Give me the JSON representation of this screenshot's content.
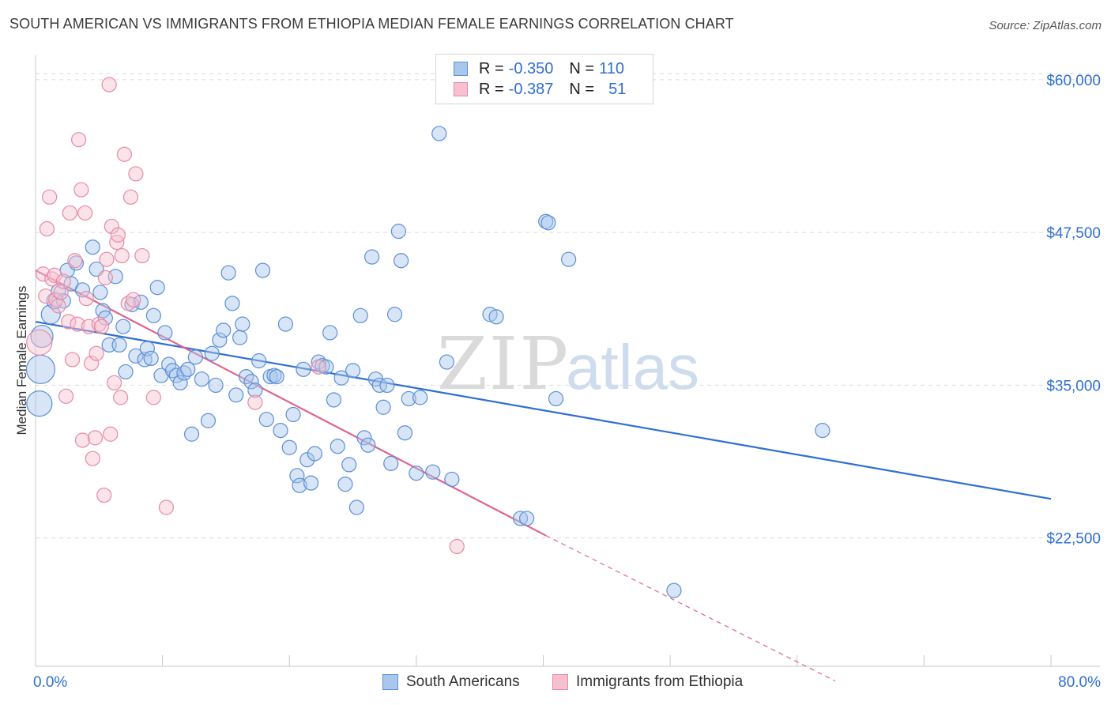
{
  "header": {
    "title": "SOUTH AMERICAN VS IMMIGRANTS FROM ETHIOPIA MEDIAN FEMALE EARNINGS CORRELATION CHART",
    "source": "Source: ZipAtlas.com"
  },
  "watermark": {
    "part1": "ZIP",
    "part2": "atlas"
  },
  "colors": {
    "blue_fill": "#a9c6ec",
    "blue_stroke": "#5b8fd6",
    "blue_line": "#2f6fd0",
    "pink_fill": "#f6c0d1",
    "pink_stroke": "#e68aa7",
    "pink_line": "#e0648f",
    "axis_text": "#2f6fd0",
    "grid": "#dcdcdc"
  },
  "legend": {
    "r_label": "R =",
    "n_label": "N =",
    "rows": [
      {
        "name": "South Americans",
        "r": "-0.350",
        "n": "110",
        "color": "blue"
      },
      {
        "name": "Immigrants from Ethiopia",
        "r": "-0.387",
        "n": "51",
        "color": "pink"
      }
    ]
  },
  "chart_data": {
    "type": "scatter",
    "title": "SOUTH AMERICAN VS IMMIGRANTS FROM ETHIOPIA MEDIAN FEMALE EARNINGS CORRELATION CHART",
    "xlabel": "",
    "ylabel": "Median Female Earnings",
    "xlim": [
      0,
      80
    ],
    "ylim": [
      12000,
      62000
    ],
    "x_tick_labels": [
      "0.0%",
      "80.0%"
    ],
    "y_ticks": [
      22500,
      35000,
      47500,
      60000
    ],
    "y_tick_labels": [
      "$22,500",
      "$35,000",
      "$47,500",
      "$60,000"
    ],
    "grid": true,
    "series": [
      {
        "name": "South Americans",
        "color": "blue",
        "trend": {
          "x0": 0,
          "y0": 40200,
          "x1": 80,
          "y1": 25700,
          "dashed_to": null
        },
        "points": [
          [
            0.3,
            33500,
            16
          ],
          [
            0.4,
            36300,
            18
          ],
          [
            0.5,
            39000,
            14
          ],
          [
            1.2,
            40800,
            12
          ],
          [
            1.5,
            41900,
            10
          ],
          [
            1.8,
            42700,
            9
          ],
          [
            2.2,
            41900,
            9
          ],
          [
            2.5,
            44400,
            9
          ],
          [
            2.8,
            43300,
            9
          ],
          [
            3.2,
            45000,
            9
          ],
          [
            3.7,
            42800,
            9
          ],
          [
            4.5,
            46300,
            9
          ],
          [
            4.8,
            44500,
            9
          ],
          [
            5.1,
            42600,
            9
          ],
          [
            5.3,
            41100,
            9
          ],
          [
            5.5,
            40500,
            9
          ],
          [
            5.8,
            38300,
            9
          ],
          [
            6.3,
            43900,
            9
          ],
          [
            6.6,
            38300,
            9
          ],
          [
            6.9,
            39800,
            9
          ],
          [
            7.1,
            36100,
            9
          ],
          [
            7.6,
            41600,
            9
          ],
          [
            7.9,
            37400,
            9
          ],
          [
            8.3,
            41800,
            9
          ],
          [
            8.6,
            37100,
            9
          ],
          [
            8.8,
            38000,
            9
          ],
          [
            9.1,
            37200,
            9
          ],
          [
            9.3,
            40700,
            9
          ],
          [
            9.6,
            43000,
            9
          ],
          [
            9.9,
            35800,
            9
          ],
          [
            10.2,
            39300,
            9
          ],
          [
            10.5,
            36700,
            9
          ],
          [
            10.8,
            36200,
            9
          ],
          [
            11.1,
            35800,
            9
          ],
          [
            11.4,
            35200,
            9
          ],
          [
            11.7,
            36000,
            9
          ],
          [
            12.0,
            36300,
            9
          ],
          [
            12.3,
            31000,
            9
          ],
          [
            12.6,
            37300,
            9
          ],
          [
            13.1,
            35500,
            9
          ],
          [
            13.6,
            32100,
            9
          ],
          [
            13.9,
            37600,
            9
          ],
          [
            14.2,
            35000,
            9
          ],
          [
            14.5,
            38700,
            9
          ],
          [
            14.8,
            39500,
            9
          ],
          [
            15.2,
            44200,
            9
          ],
          [
            15.5,
            41700,
            9
          ],
          [
            15.8,
            34200,
            9
          ],
          [
            16.1,
            38900,
            9
          ],
          [
            16.3,
            40000,
            9
          ],
          [
            16.6,
            35700,
            9
          ],
          [
            17.0,
            35300,
            9
          ],
          [
            17.3,
            34600,
            9
          ],
          [
            17.6,
            37000,
            9
          ],
          [
            17.9,
            44400,
            9
          ],
          [
            18.2,
            32200,
            9
          ],
          [
            18.5,
            35700,
            9
          ],
          [
            18.8,
            35800,
            9
          ],
          [
            19.0,
            35700,
            9
          ],
          [
            19.3,
            31300,
            9
          ],
          [
            19.7,
            40000,
            9
          ],
          [
            20.0,
            29900,
            9
          ],
          [
            20.3,
            32600,
            9
          ],
          [
            20.6,
            27600,
            9
          ],
          [
            20.8,
            26800,
            9
          ],
          [
            21.1,
            36300,
            9
          ],
          [
            21.4,
            28900,
            9
          ],
          [
            21.7,
            27000,
            9
          ],
          [
            22.0,
            29400,
            9
          ],
          [
            22.3,
            36900,
            9
          ],
          [
            22.6,
            36600,
            9
          ],
          [
            22.9,
            36500,
            9
          ],
          [
            23.2,
            39300,
            9
          ],
          [
            23.5,
            33800,
            9
          ],
          [
            23.8,
            30000,
            9
          ],
          [
            24.1,
            35600,
            9
          ],
          [
            24.4,
            26900,
            9
          ],
          [
            24.7,
            28500,
            9
          ],
          [
            25.0,
            36200,
            9
          ],
          [
            25.3,
            25000,
            9
          ],
          [
            25.6,
            40700,
            9
          ],
          [
            25.9,
            30700,
            9
          ],
          [
            26.2,
            30100,
            9
          ],
          [
            26.5,
            45500,
            9
          ],
          [
            26.8,
            35500,
            9
          ],
          [
            27.1,
            35000,
            9
          ],
          [
            27.4,
            33200,
            9
          ],
          [
            27.7,
            35000,
            9
          ],
          [
            28.0,
            28600,
            9
          ],
          [
            28.3,
            40800,
            9
          ],
          [
            28.6,
            47600,
            9
          ],
          [
            28.8,
            45200,
            9
          ],
          [
            29.1,
            31100,
            9
          ],
          [
            29.4,
            33900,
            9
          ],
          [
            30.0,
            27800,
            9
          ],
          [
            30.3,
            34000,
            9
          ],
          [
            31.3,
            27900,
            9
          ],
          [
            31.8,
            55600,
            9
          ],
          [
            32.4,
            36900,
            9
          ],
          [
            32.8,
            27300,
            9
          ],
          [
            35.8,
            40800,
            9
          ],
          [
            36.3,
            40600,
            9
          ],
          [
            38.2,
            24100,
            9
          ],
          [
            38.7,
            24100,
            9
          ],
          [
            40.2,
            48400,
            9
          ],
          [
            40.4,
            48300,
            9
          ],
          [
            41.0,
            33900,
            9
          ],
          [
            42.0,
            45300,
            9
          ],
          [
            62.0,
            31300,
            9
          ],
          [
            50.3,
            18200,
            9
          ]
        ]
      },
      {
        "name": "Immigrants from Ethiopia",
        "color": "pink",
        "trend": {
          "x0": 0,
          "y0": 44400,
          "x1": 40.2,
          "y1": 22700,
          "dashed_to": [
            63.0,
            10800
          ]
        },
        "points": [
          [
            0.3,
            38500,
            16
          ],
          [
            0.6,
            44100,
            9
          ],
          [
            0.8,
            42300,
            9
          ],
          [
            0.9,
            47800,
            9
          ],
          [
            1.1,
            50400,
            9
          ],
          [
            1.3,
            43700,
            9
          ],
          [
            1.5,
            44000,
            9
          ],
          [
            1.6,
            42000,
            9
          ],
          [
            1.8,
            41500,
            9
          ],
          [
            2.0,
            42600,
            9
          ],
          [
            2.2,
            43500,
            9
          ],
          [
            2.4,
            34100,
            9
          ],
          [
            2.6,
            40200,
            9
          ],
          [
            2.7,
            49100,
            9
          ],
          [
            2.9,
            37100,
            9
          ],
          [
            3.1,
            45200,
            9
          ],
          [
            3.3,
            40000,
            9
          ],
          [
            3.4,
            55100,
            9
          ],
          [
            3.6,
            51000,
            9
          ],
          [
            3.7,
            30500,
            9
          ],
          [
            3.9,
            49100,
            9
          ],
          [
            4.0,
            42100,
            9
          ],
          [
            4.2,
            39800,
            9
          ],
          [
            4.4,
            36800,
            9
          ],
          [
            4.5,
            29000,
            9
          ],
          [
            4.7,
            30700,
            9
          ],
          [
            4.8,
            37600,
            9
          ],
          [
            5.0,
            40000,
            9
          ],
          [
            5.2,
            39800,
            9
          ],
          [
            5.4,
            26000,
            9
          ],
          [
            5.5,
            43800,
            9
          ],
          [
            5.6,
            45300,
            9
          ],
          [
            5.8,
            59600,
            9
          ],
          [
            5.9,
            31000,
            9
          ],
          [
            6.0,
            48000,
            9
          ],
          [
            6.2,
            35200,
            9
          ],
          [
            6.4,
            46700,
            9
          ],
          [
            6.5,
            47300,
            9
          ],
          [
            6.7,
            34000,
            9
          ],
          [
            6.8,
            45600,
            9
          ],
          [
            7.0,
            53900,
            9
          ],
          [
            7.3,
            41700,
            9
          ],
          [
            7.5,
            50400,
            9
          ],
          [
            7.7,
            42000,
            9
          ],
          [
            7.9,
            52300,
            9
          ],
          [
            8.4,
            45600,
            9
          ],
          [
            9.3,
            34000,
            9
          ],
          [
            10.3,
            25000,
            9
          ],
          [
            17.3,
            33600,
            9
          ],
          [
            22.3,
            36500,
            9
          ],
          [
            33.2,
            21800,
            9
          ]
        ]
      }
    ]
  }
}
